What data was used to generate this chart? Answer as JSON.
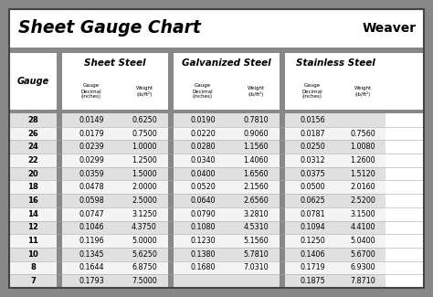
{
  "title": "Sheet Gauge Chart",
  "bg_outer": "#888888",
  "bg_white": "#ffffff",
  "bg_col_divider": "#888888",
  "row_bg_odd": "#e0e0e0",
  "row_bg_even": "#f4f4f4",
  "header_bg": "#ffffff",
  "gauges": [
    28,
    26,
    24,
    22,
    20,
    18,
    16,
    14,
    12,
    11,
    10,
    8,
    7
  ],
  "sheet_steel_dec": [
    "0.0149",
    "0.0179",
    "0.0239",
    "0.0299",
    "0.0359",
    "0.0478",
    "0.0598",
    "0.0747",
    "0.1046",
    "0.1196",
    "0.1345",
    "0.1644",
    "0.1793"
  ],
  "sheet_steel_wt": [
    "0.6250",
    "0.7500",
    "1.0000",
    "1.2500",
    "1.5000",
    "2.0000",
    "2.5000",
    "3.1250",
    "4.3750",
    "5.0000",
    "5.6250",
    "6.8750",
    "7.5000"
  ],
  "galv_dec": [
    "0.0190",
    "0.0220",
    "0.0280",
    "0.0340",
    "0.0400",
    "0.0520",
    "0.0640",
    "0.0790",
    "0.1080",
    "0.1230",
    "0.1380",
    "0.1680",
    ""
  ],
  "galv_wt": [
    "0.7810",
    "0.9060",
    "1.1560",
    "1.4060",
    "1.6560",
    "2.1560",
    "2.6560",
    "3.2810",
    "4.5310",
    "5.1560",
    "5.7810",
    "7.0310",
    ""
  ],
  "stainless_dec": [
    "0.0156",
    "0.0187",
    "0.0250",
    "0.0312",
    "0.0375",
    "0.0500",
    "0.0625",
    "0.0781",
    "0.1094",
    "0.1250",
    "0.1406",
    "0.1719",
    "0.1875"
  ],
  "stainless_wt": [
    "",
    "0.7560",
    "1.0080",
    "1.2600",
    "1.5120",
    "2.0160",
    "2.5200",
    "3.1500",
    "4.4100",
    "5.0400",
    "5.6700",
    "6.9300",
    "7.8710"
  ],
  "col_section_labels": [
    "Sheet Steel",
    "Galvanized Steel",
    "Stainless Steel"
  ],
  "sub_label_dec": "Gauge\nDecimal\n(inches)",
  "sub_label_wt": "Weight\n(lb/ft²)",
  "weaver_label": "Weaver"
}
